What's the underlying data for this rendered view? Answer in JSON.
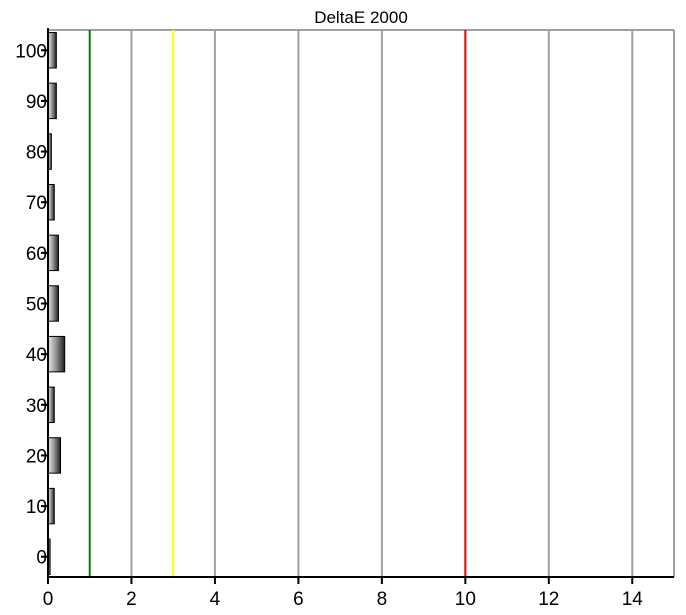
{
  "chart_data": {
    "type": "bar",
    "orientation": "horizontal",
    "title": "DeltaE 2000",
    "xlabel": "",
    "ylabel": "",
    "xlim": [
      0,
      15
    ],
    "ylim": [
      -4,
      104
    ],
    "x_ticks": [
      0,
      2,
      4,
      6,
      8,
      10,
      12,
      14
    ],
    "y_ticks": [
      0,
      10,
      20,
      30,
      40,
      50,
      60,
      70,
      80,
      90,
      100
    ],
    "grid": "vertical",
    "categories": [
      0,
      10,
      20,
      30,
      40,
      50,
      60,
      70,
      80,
      90,
      100
    ],
    "values": [
      0.05,
      0.15,
      0.3,
      0.15,
      0.4,
      0.25,
      0.25,
      0.15,
      0.08,
      0.2,
      0.2
    ],
    "threshold_lines": [
      {
        "x": 1,
        "color": "#008000"
      },
      {
        "x": 3,
        "color": "#ffff00"
      },
      {
        "x": 10,
        "color": "#ff0000"
      }
    ],
    "colors": {
      "grid": "#a0a0a0",
      "bar_dark": "#202020",
      "bar_light": "#e8e8e8",
      "frame": "#a0a0a0"
    }
  }
}
